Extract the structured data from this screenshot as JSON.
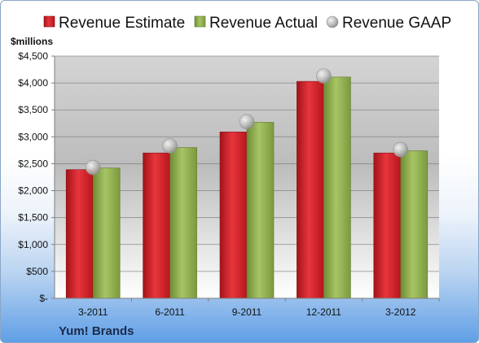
{
  "chart_data": {
    "type": "bar",
    "unit_label": "$millions",
    "company": "Yum! Brands",
    "categories": [
      "3-2011",
      "6-2011",
      "9-2011",
      "12-2011",
      "3-2012"
    ],
    "series": [
      {
        "name": "Revenue Estimate",
        "kind": "bar",
        "color": "#d8222a",
        "values": [
          2390,
          2700,
          3090,
          4030,
          2700
        ]
      },
      {
        "name": "Revenue Actual",
        "kind": "bar",
        "color": "#8fb04e",
        "values": [
          2420,
          2800,
          3270,
          4110,
          2740
        ]
      },
      {
        "name": "Revenue GAAP",
        "kind": "marker",
        "color": "#b8b8b8",
        "values": [
          2430,
          2830,
          3280,
          4130,
          2760
        ]
      }
    ],
    "ylim": [
      0,
      4500
    ],
    "yticks": [
      0,
      500,
      1000,
      1500,
      2000,
      2500,
      3000,
      3500,
      4000,
      4500
    ],
    "ytick_labels": [
      "$-",
      "$500",
      "$1,000",
      "$1,500",
      "$2,000",
      "$2,500",
      "$3,000",
      "$3,500",
      "$4,000",
      "$4,500"
    ],
    "grid": true,
    "legend_position": "top"
  }
}
